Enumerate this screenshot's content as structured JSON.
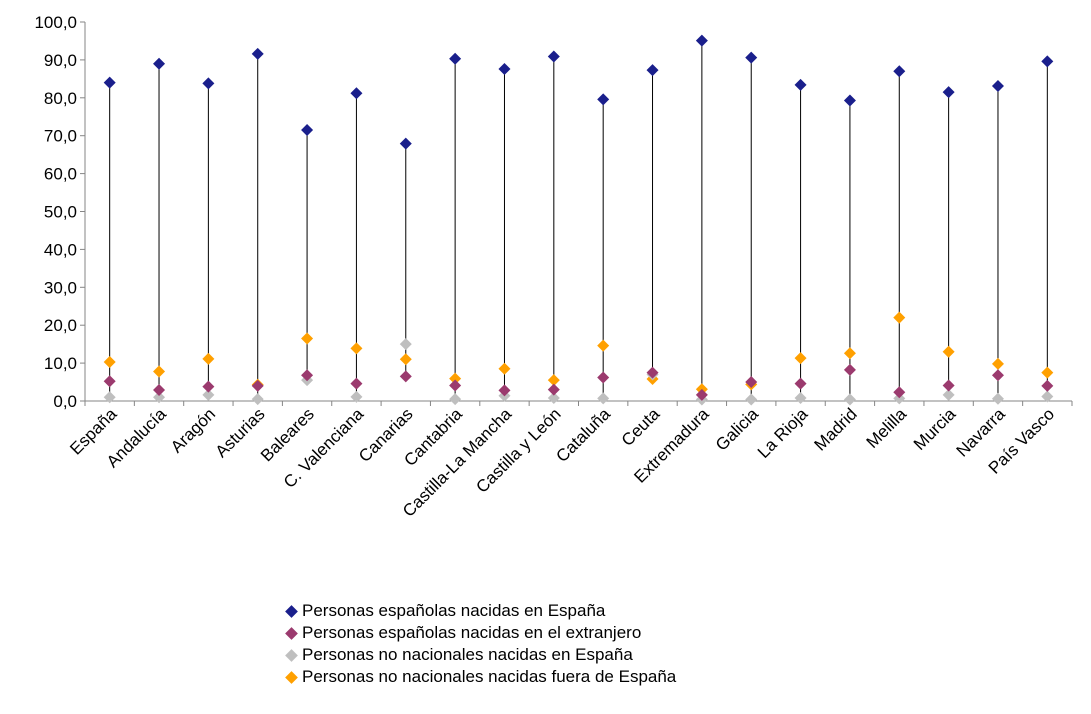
{
  "chart_data": {
    "type": "scatter",
    "categories": [
      "España",
      "Andalucía",
      "Aragón",
      "Asturias",
      "Baleares",
      "C. Valenciana",
      "Canarias",
      "Cantabria",
      "Castilla-La Mancha",
      "Castilla y León",
      "Cataluña",
      "Ceuta",
      "Extremadura",
      "Galicia",
      "La Rioja",
      "Madrid",
      "Melilla",
      "Murcia",
      "Navarra",
      "País Vasco"
    ],
    "ylim": [
      0,
      100
    ],
    "yticks": [
      "0,0",
      "10,0",
      "20,0",
      "30,0",
      "40,0",
      "50,0",
      "60,0",
      "70,0",
      "80,0",
      "90,0",
      "100,0"
    ],
    "grid": false,
    "legend_position": "bottom",
    "drop_lines": true,
    "series": [
      {
        "name": "Personas españolas nacidas en España",
        "color": "#1a1f8c",
        "values": [
          84.0,
          89.0,
          83.8,
          91.6,
          71.5,
          81.2,
          67.9,
          90.3,
          87.6,
          90.9,
          79.6,
          87.3,
          95.1,
          90.6,
          83.4,
          79.3,
          87.0,
          81.5,
          83.1,
          89.6
        ]
      },
      {
        "name": "Personas españolas nacidas en el extranjero",
        "color": "#9b3a6e",
        "values": [
          5.2,
          2.9,
          3.8,
          4.0,
          6.8,
          4.6,
          6.5,
          4.1,
          2.8,
          3.0,
          6.2,
          7.5,
          1.6,
          5.0,
          4.6,
          8.2,
          2.3,
          4.1,
          6.8,
          4.0
        ]
      },
      {
        "name": "Personas no nacionales nacidas en España",
        "color": "#bfbfbf",
        "values": [
          1.0,
          1.0,
          1.6,
          0.5,
          5.5,
          1.1,
          15.0,
          0.5,
          1.4,
          0.8,
          0.7,
          7.0,
          0.4,
          0.4,
          0.8,
          0.4,
          0.7,
          1.6,
          0.6,
          1.2
        ]
      },
      {
        "name": "Personas no nacionales nacidas fuera de España",
        "color": "#ffa000",
        "values": [
          10.3,
          7.8,
          11.1,
          4.3,
          16.5,
          13.9,
          11.0,
          5.9,
          8.5,
          5.5,
          14.6,
          5.8,
          3.1,
          4.4,
          11.3,
          12.6,
          22.0,
          13.0,
          9.8,
          7.5
        ]
      }
    ]
  }
}
